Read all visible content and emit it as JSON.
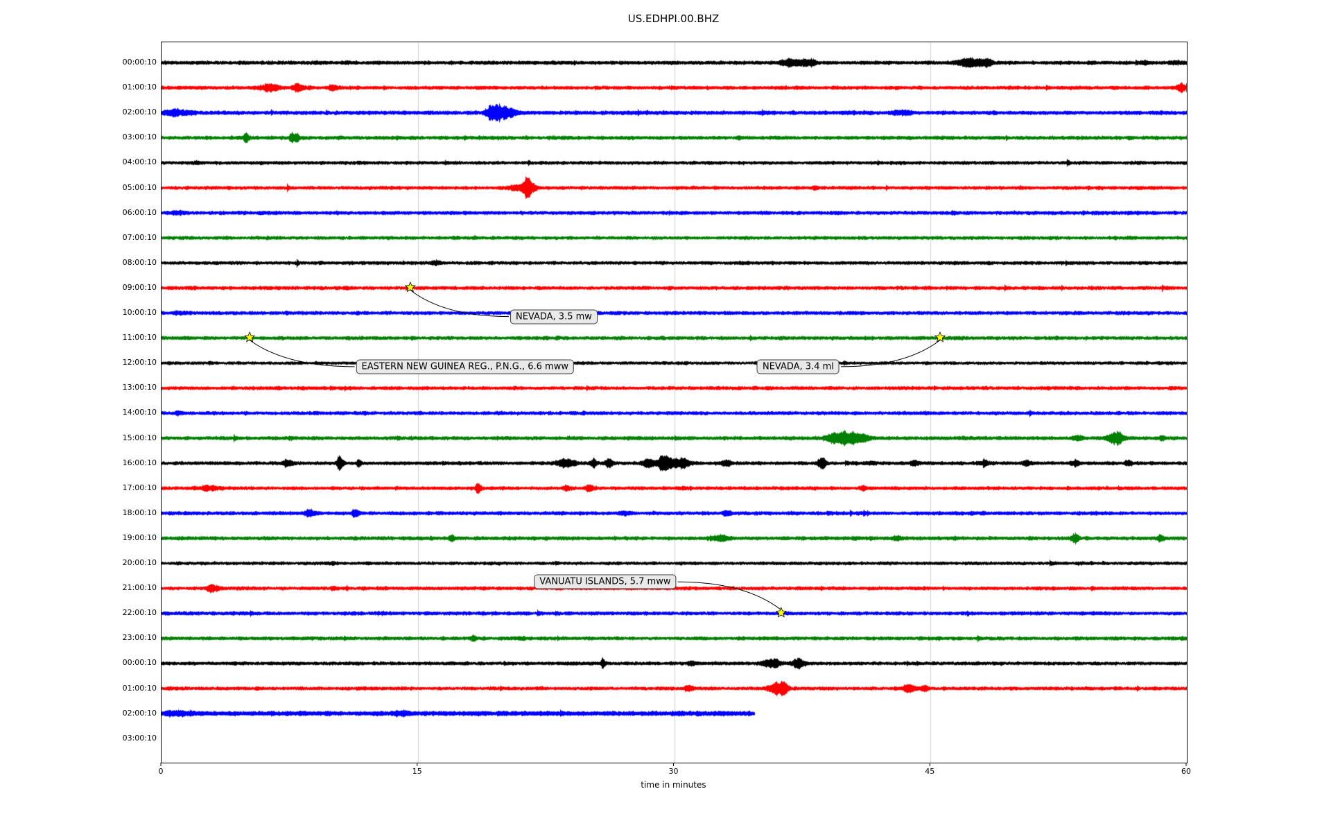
{
  "chart_data": {
    "type": "line",
    "subtype": "seismogram-dayplot",
    "title": "US.EDHPI.00.BHZ",
    "xlabel": "time in minutes",
    "xlim": [
      0,
      60
    ],
    "x_ticks": [
      "0",
      "15",
      "30",
      "45",
      "60"
    ],
    "grid": {
      "vertical_at": [
        15,
        30,
        45
      ],
      "color": "#cfcfcf"
    },
    "trace_colors_cycle": [
      "#000000",
      "#ff0000",
      "#0000ff",
      "#008000"
    ],
    "marker": {
      "shape": "star",
      "fill": "#ffff00",
      "edge": "#000000"
    },
    "rows": [
      {
        "label": "00:00:10",
        "color": "#000000",
        "amp": 2.8,
        "end": 60,
        "bursts": [
          [
            36.8,
            0.6,
            1.8
          ],
          [
            37.8,
            0.4,
            1.5
          ],
          [
            47.3,
            0.7,
            2.2
          ],
          [
            48.2,
            0.3,
            1.8
          ],
          [
            57.5,
            0.2,
            0.8
          ],
          [
            59.3,
            0.2,
            1.0
          ]
        ]
      },
      {
        "label": "01:00:10",
        "color": "#ff0000",
        "amp": 2.7,
        "end": 60,
        "bursts": [
          [
            6.3,
            0.6,
            1.5
          ],
          [
            7.9,
            0.25,
            2.5
          ],
          [
            10.0,
            0.3,
            0.8
          ],
          [
            59.6,
            0.25,
            2.2
          ]
        ]
      },
      {
        "label": "02:00:10",
        "color": "#0000ff",
        "amp": 3.0,
        "end": 60,
        "bursts": [
          [
            0.8,
            1.0,
            1.2
          ],
          [
            19.2,
            0.3,
            1.5
          ],
          [
            19.9,
            0.7,
            3.2
          ],
          [
            43.2,
            0.5,
            0.8
          ]
        ]
      },
      {
        "label": "03:00:10",
        "color": "#008000",
        "amp": 2.8,
        "end": 60,
        "bursts": [
          [
            4.9,
            0.12,
            3.5
          ],
          [
            7.6,
            0.12,
            3.0
          ],
          [
            7.9,
            0.1,
            2.0
          ]
        ]
      },
      {
        "label": "04:00:10",
        "color": "#000000",
        "amp": 2.6,
        "end": 60,
        "bursts": [
          [
            2.0,
            0.3,
            0.5
          ]
        ]
      },
      {
        "label": "05:00:10",
        "color": "#ff0000",
        "amp": 2.6,
        "end": 60,
        "bursts": [
          [
            20.8,
            0.5,
            1.5
          ],
          [
            21.4,
            0.3,
            5.5
          ],
          [
            38.2,
            0.1,
            1.2
          ]
        ]
      },
      {
        "label": "06:00:10",
        "color": "#0000ff",
        "amp": 2.8,
        "end": 60,
        "bursts": [
          [
            1.0,
            0.5,
            0.6
          ]
        ]
      },
      {
        "label": "07:00:10",
        "color": "#008000",
        "amp": 2.6,
        "end": 60,
        "bursts": []
      },
      {
        "label": "08:00:10",
        "color": "#000000",
        "amp": 2.6,
        "end": 60,
        "bursts": [
          [
            16.0,
            0.4,
            0.6
          ]
        ]
      },
      {
        "label": "09:00:10",
        "color": "#ff0000",
        "amp": 2.7,
        "end": 60,
        "bursts": []
      },
      {
        "label": "10:00:10",
        "color": "#0000ff",
        "amp": 2.7,
        "end": 60,
        "bursts": [
          [
            1.0,
            0.4,
            0.7
          ]
        ]
      },
      {
        "label": "11:00:10",
        "color": "#008000",
        "amp": 2.7,
        "end": 60,
        "bursts": []
      },
      {
        "label": "12:00:10",
        "color": "#000000",
        "amp": 2.4,
        "end": 60,
        "bursts": []
      },
      {
        "label": "13:00:10",
        "color": "#ff0000",
        "amp": 2.7,
        "end": 60,
        "bursts": []
      },
      {
        "label": "14:00:10",
        "color": "#0000ff",
        "amp": 2.7,
        "end": 60,
        "bursts": [
          [
            1.0,
            0.3,
            0.6
          ]
        ]
      },
      {
        "label": "15:00:10",
        "color": "#008000",
        "amp": 2.8,
        "end": 60,
        "bursts": [
          [
            39.7,
            0.8,
            2.8
          ],
          [
            40.8,
            0.5,
            2.0
          ],
          [
            53.6,
            0.25,
            1.2
          ],
          [
            55.8,
            0.45,
            2.8
          ],
          [
            58.5,
            0.2,
            0.8
          ]
        ]
      },
      {
        "label": "16:00:10",
        "color": "#000000",
        "amp": 2.7,
        "end": 60,
        "bursts": [
          [
            7.3,
            0.3,
            1.5
          ],
          [
            10.4,
            0.18,
            3.5
          ],
          [
            11.5,
            0.15,
            1.5
          ],
          [
            23.6,
            0.5,
            1.8
          ],
          [
            25.2,
            0.2,
            2.2
          ],
          [
            26.1,
            0.2,
            2.5
          ],
          [
            28.4,
            0.3,
            2.0
          ],
          [
            29.4,
            0.5,
            3.5
          ],
          [
            30.4,
            0.4,
            2.2
          ],
          [
            33.0,
            0.3,
            1.2
          ],
          [
            38.6,
            0.25,
            2.6
          ],
          [
            41.5,
            0.2,
            1.0
          ],
          [
            44.0,
            0.25,
            1.4
          ],
          [
            48.1,
            0.25,
            1.4
          ],
          [
            50.5,
            0.2,
            1.0
          ],
          [
            53.4,
            0.25,
            1.4
          ],
          [
            56.5,
            0.2,
            1.0
          ]
        ]
      },
      {
        "label": "17:00:10",
        "color": "#ff0000",
        "amp": 2.6,
        "end": 60,
        "bursts": [
          [
            2.7,
            0.5,
            1.2
          ],
          [
            18.5,
            0.15,
            2.8
          ],
          [
            23.6,
            0.15,
            1.6
          ],
          [
            25.0,
            0.15,
            2.0
          ],
          [
            30.5,
            0.2,
            0.8
          ],
          [
            41.0,
            0.2,
            0.8
          ]
        ]
      },
      {
        "label": "18:00:10",
        "color": "#0000ff",
        "amp": 2.8,
        "end": 60,
        "bursts": [
          [
            8.6,
            0.3,
            1.2
          ],
          [
            11.3,
            0.2,
            1.6
          ],
          [
            27.0,
            0.3,
            0.7
          ],
          [
            33.0,
            0.2,
            0.8
          ]
        ]
      },
      {
        "label": "19:00:10",
        "color": "#008000",
        "amp": 2.8,
        "end": 60,
        "bursts": [
          [
            16.9,
            0.15,
            1.4
          ],
          [
            32.6,
            0.5,
            1.3
          ],
          [
            43.0,
            0.3,
            0.8
          ],
          [
            53.4,
            0.2,
            2.2
          ],
          [
            58.4,
            0.18,
            1.6
          ]
        ]
      },
      {
        "label": "20:00:10",
        "color": "#000000",
        "amp": 2.5,
        "end": 60,
        "bursts": [
          [
            10.0,
            0.3,
            0.5
          ]
        ]
      },
      {
        "label": "21:00:10",
        "color": "#ff0000",
        "amp": 2.6,
        "end": 60,
        "bursts": [
          [
            2.9,
            0.3,
            1.6
          ],
          [
            10.0,
            0.2,
            0.6
          ]
        ]
      },
      {
        "label": "22:00:10",
        "color": "#0000ff",
        "amp": 2.7,
        "end": 60,
        "bursts": []
      },
      {
        "label": "23:00:10",
        "color": "#008000",
        "amp": 2.7,
        "end": 60,
        "bursts": [
          [
            18.2,
            0.15,
            1.2
          ],
          [
            21.0,
            0.2,
            0.8
          ]
        ]
      },
      {
        "label": "00:00:10",
        "color": "#000000",
        "amp": 2.6,
        "end": 60,
        "bursts": [
          [
            25.8,
            0.12,
            3.2
          ],
          [
            31.0,
            0.3,
            0.8
          ],
          [
            35.6,
            0.5,
            2.2
          ],
          [
            37.2,
            0.3,
            2.4
          ]
        ]
      },
      {
        "label": "01:00:10",
        "color": "#ff0000",
        "amp": 2.6,
        "end": 60,
        "bursts": [
          [
            30.8,
            0.2,
            1.8
          ],
          [
            35.9,
            0.4,
            3.2
          ],
          [
            36.4,
            0.2,
            2.0
          ],
          [
            43.7,
            0.35,
            2.6
          ],
          [
            44.6,
            0.2,
            1.6
          ]
        ]
      },
      {
        "label": "02:00:10",
        "color": "#0000ff",
        "amp": 3.6,
        "end": 34.7,
        "bursts": [
          [
            1.0,
            1.0,
            0.5
          ],
          [
            14.0,
            0.5,
            0.5
          ]
        ]
      },
      {
        "label": "03:00:10",
        "color": "#008000",
        "amp": 0,
        "end": 0,
        "bursts": []
      }
    ],
    "events": [
      {
        "row": 9,
        "minute": 14.6,
        "label": "NEVADA, 3.5 mw",
        "label_minute": 23.0,
        "label_row": 10.17
      },
      {
        "row": 11,
        "minute": 5.2,
        "label": "EASTERN NEW GUINEA REG., P.N.G., 6.6 mww",
        "label_minute": 17.8,
        "label_row": 12.17
      },
      {
        "row": 11,
        "minute": 45.6,
        "label": "NEVADA, 3.4 ml",
        "label_minute": 37.3,
        "label_row": 12.17
      },
      {
        "row": 22,
        "minute": 36.3,
        "label": "VANUATU ISLANDS, 5.7 mww",
        "label_minute": 26.0,
        "label_row": 20.77
      }
    ]
  }
}
